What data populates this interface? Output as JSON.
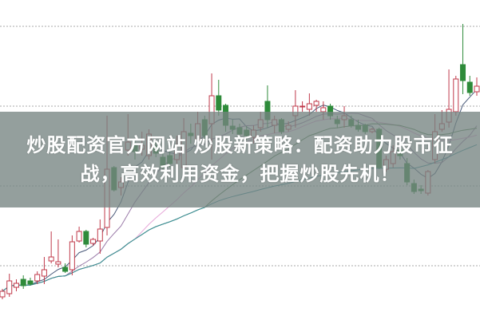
{
  "title": "炒股配资官方网站 炒股新策略：配资助力股市征战，高效利用资金，把握炒股先机！",
  "chart_data": {
    "type": "candlestick",
    "value_order": [
      "open",
      "high",
      "low",
      "close"
    ],
    "ylim": [
      3.2,
      43.3
    ],
    "gridlines": [
      10,
      20,
      30,
      40
    ],
    "grid": true,
    "up_color": "#c0394a",
    "down_color": "#2e8b3a",
    "moving_average_colors": [
      "#4a5a7a",
      "#9a7aa8",
      "#e6a6d8",
      "#4f7f4f",
      "#3a8f9a"
    ],
    "candles": [
      [
        6.1,
        7.1,
        5.8,
        6.8
      ],
      [
        6.5,
        9.0,
        6.1,
        8.1
      ],
      [
        7.3,
        8.3,
        6.8,
        7.8
      ],
      [
        8.3,
        8.8,
        7.1,
        7.5
      ],
      [
        8.1,
        8.5,
        7.5,
        7.7
      ],
      [
        8.1,
        9.3,
        7.7,
        8.9
      ],
      [
        8.7,
        11.1,
        7.7,
        9.5
      ],
      [
        10.6,
        14.3,
        10.3,
        11.1
      ],
      [
        10.2,
        13.3,
        9.8,
        10.5
      ],
      [
        9.8,
        10.3,
        9.1,
        9.3
      ],
      [
        9.5,
        13.8,
        8.8,
        13.0
      ],
      [
        13.1,
        14.9,
        12.9,
        14.3
      ],
      [
        14.3,
        14.5,
        12.3,
        12.7
      ],
      [
        12.8,
        13.5,
        12.5,
        13.3
      ],
      [
        13.1,
        15.8,
        11.5,
        14.6
      ],
      [
        14.8,
        28.8,
        13.8,
        22.1
      ],
      [
        22.3,
        22.5,
        19.3,
        19.5
      ],
      [
        19.8,
        21.1,
        18.8,
        20.5
      ],
      [
        24.5,
        29.0,
        23.8,
        25.5
      ],
      [
        25.3,
        25.8,
        23.3,
        24.3
      ],
      [
        24.6,
        26.8,
        23.8,
        25.1
      ],
      [
        23.8,
        27.1,
        23.3,
        26.5
      ],
      [
        25.0,
        25.5,
        23.6,
        24.1
      ],
      [
        23.6,
        24.3,
        21.8,
        22.3
      ],
      [
        23.8,
        24.3,
        22.3,
        22.8
      ],
      [
        23.3,
        26.3,
        22.8,
        24.3
      ],
      [
        22.3,
        28.5,
        21.3,
        26.8
      ],
      [
        26.6,
        27.8,
        25.3,
        26.3
      ],
      [
        25.8,
        29.3,
        25.3,
        27.8
      ],
      [
        28.3,
        28.8,
        25.8,
        26.3
      ],
      [
        27.8,
        34.1,
        23.3,
        31.3
      ],
      [
        31.3,
        33.3,
        28.8,
        29.5
      ],
      [
        30.1,
        30.3,
        26.8,
        27.6
      ],
      [
        27.5,
        28.3,
        26.5,
        27.1
      ],
      [
        27.3,
        27.8,
        26.1,
        26.5
      ],
      [
        27.0,
        27.5,
        25.8,
        26.3
      ],
      [
        26.1,
        27.6,
        25.3,
        27.0
      ],
      [
        27.3,
        29.3,
        26.8,
        28.3
      ],
      [
        30.6,
        32.6,
        27.3,
        28.3
      ],
      [
        27.6,
        28.8,
        26.6,
        28.3
      ],
      [
        28.3,
        28.5,
        26.5,
        26.8
      ],
      [
        27.1,
        28.1,
        26.8,
        27.6
      ],
      [
        28.8,
        32.0,
        27.3,
        30.0
      ],
      [
        29.9,
        30.6,
        29.3,
        30.0
      ],
      [
        29.6,
        31.6,
        28.8,
        30.3
      ],
      [
        30.1,
        30.8,
        29.3,
        30.6
      ],
      [
        29.3,
        30.6,
        28.3,
        29.8
      ],
      [
        30.0,
        30.3,
        28.3,
        28.8
      ],
      [
        28.3,
        28.8,
        27.3,
        27.8
      ],
      [
        28.3,
        30.0,
        27.3,
        28.8
      ],
      [
        28.3,
        28.8,
        27.3,
        27.6
      ],
      [
        27.6,
        28.3,
        26.8,
        27.1
      ],
      [
        27.6,
        27.8,
        26.5,
        26.8
      ],
      [
        26.8,
        27.3,
        26.6,
        27.1
      ],
      [
        27.1,
        27.3,
        22.1,
        22.3
      ],
      [
        22.1,
        23.8,
        21.8,
        23.3
      ],
      [
        22.8,
        25.1,
        22.3,
        24.3
      ],
      [
        24.5,
        25.1,
        23.3,
        23.8
      ],
      [
        22.8,
        23.5,
        20.1,
        20.5
      ],
      [
        20.3,
        20.8,
        19.0,
        19.3
      ],
      [
        19.6,
        20.1,
        19.0,
        19.4
      ],
      [
        19.1,
        22.0,
        18.8,
        21.8
      ],
      [
        23.3,
        29.0,
        22.8,
        26.8
      ],
      [
        27.1,
        29.5,
        26.8,
        27.8
      ],
      [
        28.0,
        34.6,
        27.3,
        29.6
      ],
      [
        29.3,
        33.8,
        28.8,
        33.4
      ],
      [
        35.2,
        40.3,
        31.5,
        33.2
      ],
      [
        33.0,
        33.8,
        31.3,
        31.7
      ],
      [
        31.8,
        33.6,
        31.3,
        32.5
      ]
    ]
  }
}
